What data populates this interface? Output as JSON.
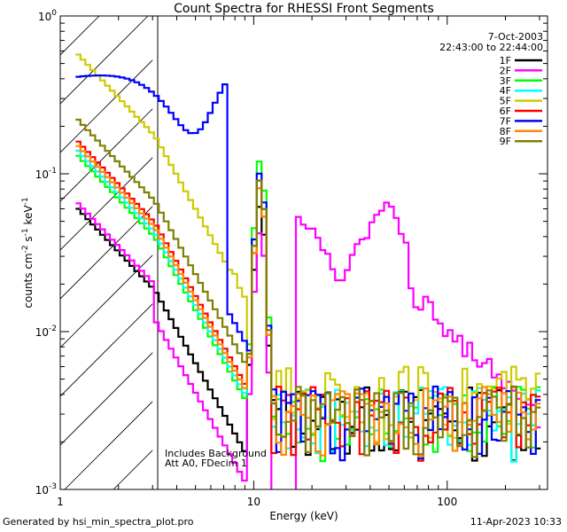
{
  "chart_data": {
    "type": "line",
    "title": "Count Spectra for RHESSI Front Segments",
    "xlabel": "Energy (keV)",
    "ylabel_main": "counts cm",
    "ylabel_parts": [
      "-2",
      " s",
      "-1",
      " keV",
      "-1"
    ],
    "xscale": "log",
    "yscale": "log",
    "xlim": [
      1,
      330
    ],
    "ylim": [
      0.001,
      1
    ],
    "x_ticks": [
      {
        "value": 1,
        "label": "1"
      },
      {
        "value": 10,
        "label": "10"
      },
      {
        "value": 100,
        "label": "100"
      }
    ],
    "y_ticks": [
      {
        "value": 1,
        "base": "10",
        "exp": "0"
      },
      {
        "value": 0.1,
        "base": "10",
        "exp": "-1"
      },
      {
        "value": 0.01,
        "base": "10",
        "exp": "-2"
      },
      {
        "value": 0.001,
        "base": "10",
        "exp": "-3"
      }
    ],
    "legend": {
      "position": "top-right",
      "date": "7-Oct-2003",
      "time_range": "22:43:00 to 22:44:00"
    },
    "attenuator_region": {
      "x_max": 3,
      "style": "hatched"
    },
    "annotations": [
      "Includes Background",
      "Att A0, FDecim 1"
    ],
    "series": [
      {
        "name": "1F",
        "color": "#000000",
        "base": 0.06,
        "peak": 0.06,
        "tail": 0.003
      },
      {
        "name": "2F",
        "color": "#ff00ff",
        "base": 0.065,
        "peak": 0.075,
        "tail": 0.0
      },
      {
        "name": "3F",
        "color": "#00ff00",
        "base": 0.13,
        "peak": 0.12,
        "tail": 0.003
      },
      {
        "name": "4F",
        "color": "#00ffff",
        "base": 0.14,
        "peak": 0.09,
        "tail": 0.003
      },
      {
        "name": "5F",
        "color": "#cccc00",
        "base": 0.57,
        "peak": 0.09,
        "tail": 0.004
      },
      {
        "name": "6F",
        "color": "#ff0000",
        "base": 0.16,
        "peak": 0.08,
        "tail": 0.003
      },
      {
        "name": "7F",
        "color": "#0000ff",
        "base": 0.3,
        "peak": 0.1,
        "tail": 0.003
      },
      {
        "name": "8F",
        "color": "#ff8800",
        "base": 0.15,
        "peak": 0.08,
        "tail": 0.003
      },
      {
        "name": "9F",
        "color": "#808000",
        "base": 0.22,
        "peak": 0.09,
        "tail": 0.003
      }
    ]
  },
  "footer": {
    "left": "Generated by hsi_min_spectra_plot.pro",
    "right": "11-Apr-2023 10:33"
  }
}
